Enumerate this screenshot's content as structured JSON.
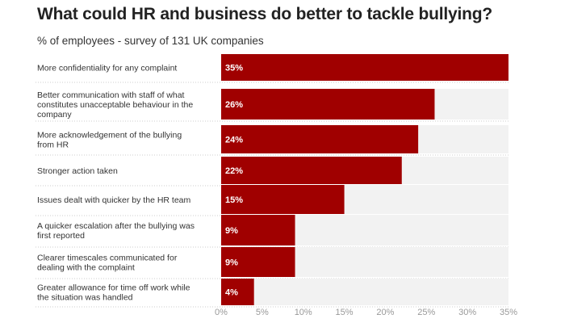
{
  "title": "What could HR and business do better to tackle bullying?",
  "subtitle": "% of employees - survey of 131 UK companies",
  "colors": {
    "bar": "#a00000",
    "track": "#f2f2f2",
    "separator": "#cccccc"
  },
  "chart_data": {
    "type": "bar",
    "orientation": "horizontal",
    "categories": [
      [
        "More confidentiality for any complaint"
      ],
      [
        "Better communication with staff of what",
        "constitutes unacceptable behaviour in the",
        "company"
      ],
      [
        "More acknowledgement of the bullying",
        "from HR"
      ],
      [
        "Stronger action taken"
      ],
      [
        "Issues dealt with quicker by the HR team"
      ],
      [
        "A quicker escalation after the bullying was",
        "first reported"
      ],
      [
        "Clearer timescales communicated for",
        "dealing with the complaint"
      ],
      [
        "Greater allowance for time off work while",
        "the situation was handled"
      ]
    ],
    "values": [
      35,
      26,
      24,
      22,
      15,
      9,
      9,
      4
    ],
    "value_labels": [
      "35%",
      "26%",
      "24%",
      "22%",
      "15%",
      "9%",
      "9%",
      "4%"
    ],
    "xticks": [
      0,
      5,
      10,
      15,
      20,
      25,
      30,
      35
    ],
    "xtick_labels": [
      "0%",
      "5%",
      "10%",
      "15%",
      "20%",
      "25%",
      "30%",
      "35%"
    ],
    "xlim": [
      0,
      35
    ],
    "grid": false
  }
}
